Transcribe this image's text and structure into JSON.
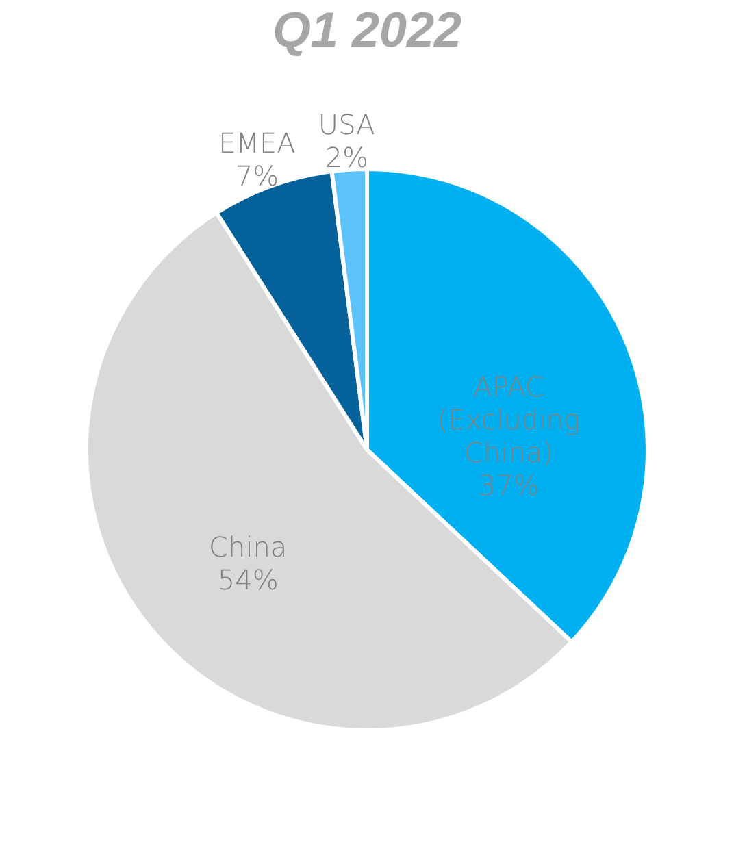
{
  "chart_data": {
    "type": "pie",
    "title": "Q1 2022",
    "categories": [
      "APAC (Excluding China)",
      "China",
      "EMEA",
      "USA"
    ],
    "values": [
      37,
      54,
      7,
      2
    ],
    "value_labels": [
      "37%",
      "54%",
      "7%",
      "2%"
    ],
    "colors": [
      "#00b0f0",
      "#d9d9d9",
      "#056199",
      "#5fc3fb"
    ]
  }
}
